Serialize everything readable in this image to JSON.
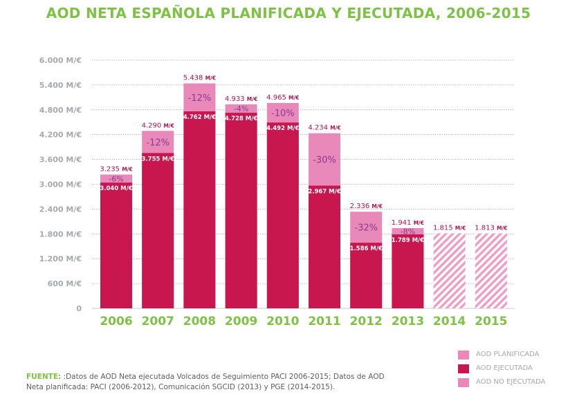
{
  "title": "AOD NETA ESPAÑOLA PLANIFICADA Y EJECUTADA, 2006-2015",
  "colors": {
    "planned": "#e889b9",
    "executed": "#c8174f",
    "title": "#7dc243",
    "year_label": "#7dc243",
    "pct_text": "#8b3a8f",
    "planned_label": "#b0124a",
    "hatch": "#ef9ec5",
    "axis_text": "#a7a9ac",
    "grid": "#8f8f8f"
  },
  "chart_data": {
    "type": "bar",
    "categories": [
      "2006",
      "2007",
      "2008",
      "2009",
      "2010",
      "2011",
      "2012",
      "2013",
      "2014",
      "2015"
    ],
    "series": [
      {
        "name": "AOD PLANIFICADA",
        "values": [
          3235,
          4290,
          5438,
          4933,
          4965,
          4234,
          2336,
          1941,
          1815,
          1813
        ]
      },
      {
        "name": "AOD EJECUTADA",
        "values": [
          3040,
          3755,
          4762,
          4728,
          4492,
          2967,
          1586,
          1789,
          null,
          null
        ]
      }
    ],
    "planned_labels": [
      "3.235",
      "4.290",
      "5.438",
      "4.933",
      "4.965",
      "4.234",
      "2.336",
      "1.941",
      "1.815",
      "1.813"
    ],
    "executed_labels": [
      "3.040",
      "3.755",
      "4.762",
      "4.728",
      "4.492",
      "2.967",
      "1.586",
      "1.789",
      "",
      ""
    ],
    "pct_labels": [
      "-6%",
      "-12%",
      "-12%",
      "-4%",
      "-10%",
      "-30%",
      "-32%",
      "-8%",
      "",
      ""
    ],
    "unit_label": "M/€",
    "hatched_categories": [
      "2014",
      "2015"
    ],
    "ylim": [
      0,
      6000
    ],
    "yticks": [
      0,
      600,
      1200,
      1800,
      2400,
      3000,
      3600,
      4200,
      4800,
      5400,
      6000
    ],
    "ytick_labels": [
      "0",
      "600 M/€",
      "1.200 M/€",
      "1.800 M/€",
      "2.400 M/€",
      "3.000 M/€",
      "3.600 M/€",
      "4.200 M/€",
      "4.800 M/€",
      "5.400 M/€",
      "6.000 M/€"
    ],
    "grid": "dotted horizontal",
    "legend_position": "bottom-right"
  },
  "legend": [
    {
      "label": "AOD PLANIFICADA",
      "color": "#e889b9"
    },
    {
      "label": "AOD EJECUTADA",
      "color": "#c8174f"
    },
    {
      "label": "AOD NO EJECUTADA",
      "color": "#e889b9"
    }
  ],
  "source": {
    "label": "FUENTE:",
    "text": " :Datos de AOD Neta ejecutada Volcados de Seguimiento PACI 2006-2015; Datos de AOD Neta planificada: PACI (2006-2012), Comunicación SGCID (2013) y PGE (2014-2015)."
  }
}
